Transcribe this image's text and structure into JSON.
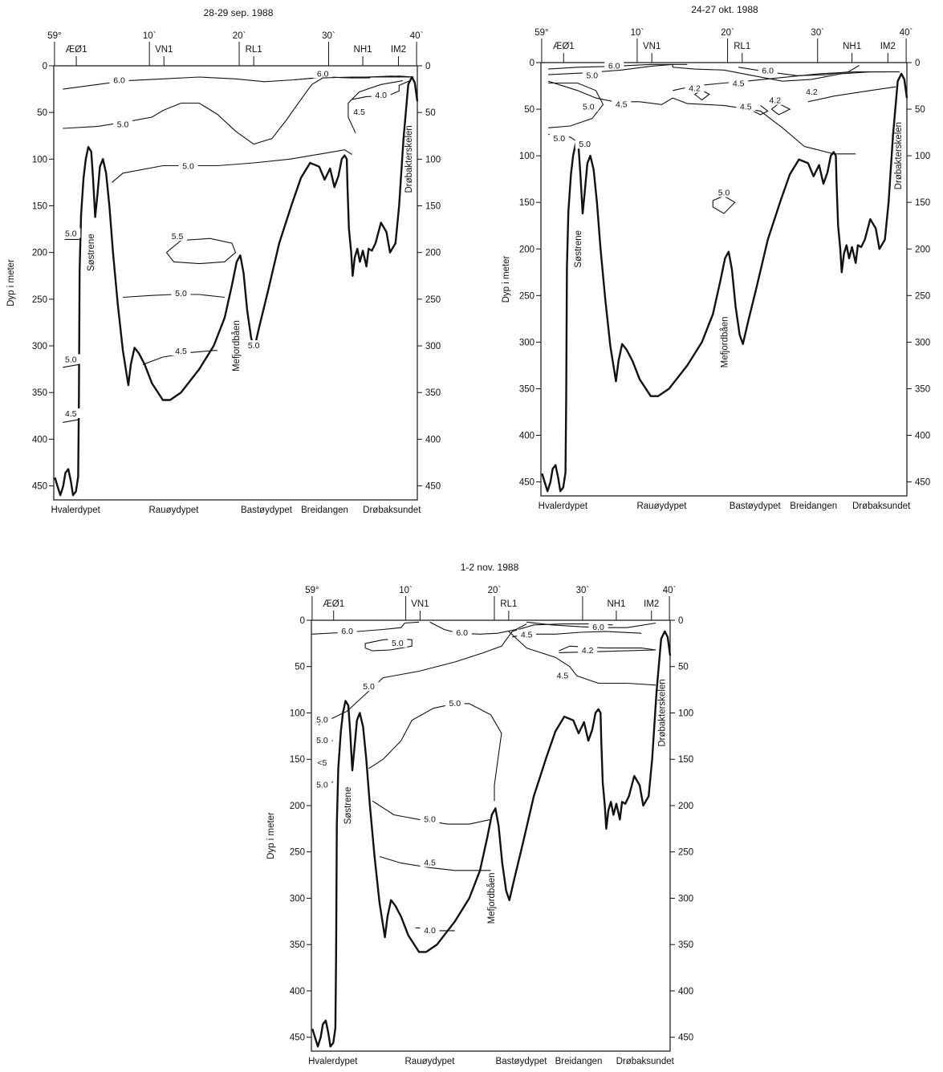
{
  "ylabel": "Dyp i meter",
  "y_ticks": [
    "0",
    "50",
    "100",
    "150",
    "200",
    "250",
    "300",
    "350",
    "400",
    "450"
  ],
  "lon_labels": [
    "59°",
    "10`",
    "20`",
    "30`",
    "40`"
  ],
  "stations": [
    "ÆØ1",
    "VN1",
    "RL1",
    "NH1",
    "IM2"
  ],
  "basins": [
    "Hvalerdypet",
    "Rauøydypet",
    "Bastøydypet",
    "Breidangen",
    "Drøbaksundet"
  ],
  "features": {
    "sill": "Drøbakterskelen",
    "sostrene": "Søstrene",
    "mefjord": "Mefjordbåen"
  },
  "panels": [
    {
      "title": "28-29 sep. 1988",
      "isolines": [
        {
          "value": "6.0"
        },
        {
          "value": "6.0"
        },
        {
          "value": "5.0"
        },
        {
          "value": "5.0"
        },
        {
          "value": "4.0"
        },
        {
          "value": "4.5"
        },
        {
          "value": "5.0"
        },
        {
          "value": "5.5"
        },
        {
          "value": "5.0"
        },
        {
          "value": "4.5"
        },
        {
          "value": "5.0"
        },
        {
          "value": "5.0"
        },
        {
          "value": "4.5"
        }
      ]
    },
    {
      "title": "24-27 okt. 1988",
      "isolines": [
        {
          "value": "6.0"
        },
        {
          "value": "6.0"
        },
        {
          "value": "5.0"
        },
        {
          "value": "5.0"
        },
        {
          "value": "4.5"
        },
        {
          "value": "4.5"
        },
        {
          "value": "5.0"
        },
        {
          "value": "4.2"
        },
        {
          "value": "4.5"
        },
        {
          "value": "4.2"
        },
        {
          "value": "4.2"
        },
        {
          "value": "5.0"
        },
        {
          "value": "5.0"
        }
      ]
    },
    {
      "title": "1-2 nov. 1988",
      "isolines": [
        {
          "value": "6.0"
        },
        {
          "value": "5.0"
        },
        {
          "value": "6.0"
        },
        {
          "value": "5.0"
        },
        {
          "value": "6.0"
        },
        {
          "value": "4.5"
        },
        {
          "value": "4.2"
        },
        {
          "value": "4.5"
        },
        {
          "value": "5.0"
        },
        {
          "value": "5.0"
        },
        {
          "value": "5.0"
        },
        {
          "value": "<5"
        },
        {
          "value": "5.0"
        },
        {
          "value": "5.0"
        },
        {
          "value": "4.5"
        },
        {
          "value": "4.0"
        }
      ]
    }
  ]
}
